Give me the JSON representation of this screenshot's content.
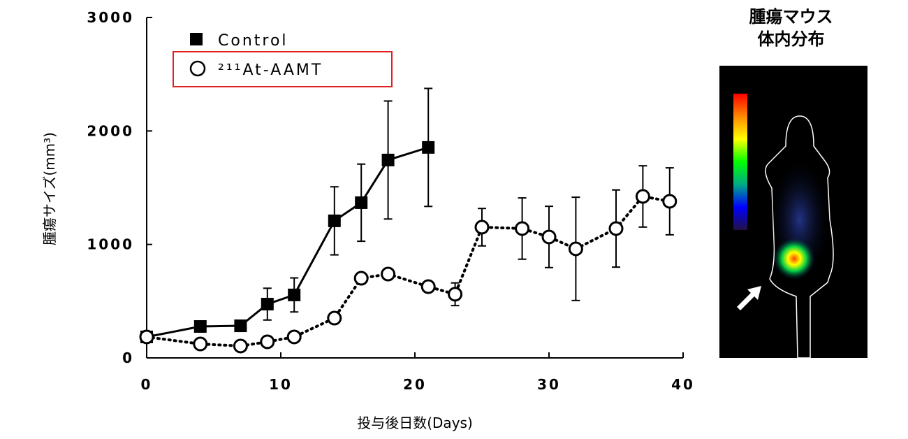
{
  "chart_data": {
    "type": "line",
    "title": "",
    "xlabel": "投与後日数(Days)",
    "ylabel": "腫瘍サイズ(mm³)",
    "xlim": [
      0,
      40
    ],
    "ylim": [
      0,
      3000
    ],
    "xticks": [
      "0",
      "10",
      "20",
      "30",
      "40"
    ],
    "yticks": [
      "0",
      "1000",
      "2000",
      "3000"
    ],
    "legend_position": "top-left",
    "series": [
      {
        "name": "Control",
        "marker": "filled-square",
        "line": "solid",
        "x": [
          0,
          4,
          7,
          9,
          11,
          14,
          16,
          18,
          21
        ],
        "y": [
          185,
          277,
          283,
          474,
          555,
          1208,
          1368,
          1744,
          1855
        ],
        "error": [
          0,
          0,
          0,
          140,
          150,
          300,
          340,
          520,
          520
        ]
      },
      {
        "name": "²¹¹At-AAMT",
        "marker": "open-circle",
        "line": "dotted",
        "x": [
          0,
          4,
          7,
          9,
          11,
          14,
          16,
          18,
          21,
          23,
          25,
          28,
          30,
          32,
          35,
          37,
          39
        ],
        "y": [
          185,
          123,
          105,
          142,
          185,
          351,
          702,
          739,
          628,
          561,
          1152,
          1140,
          1066,
          961,
          1140,
          1423,
          1380
        ],
        "error": [
          0,
          0,
          0,
          0,
          0,
          0,
          0,
          0,
          0,
          100,
          165,
          270,
          270,
          455,
          340,
          270,
          295
        ]
      }
    ]
  },
  "inset": {
    "title_line1": "腫瘍マウス",
    "title_line2": "体内分布"
  },
  "colors": {
    "highlight_box": "#e02020"
  }
}
